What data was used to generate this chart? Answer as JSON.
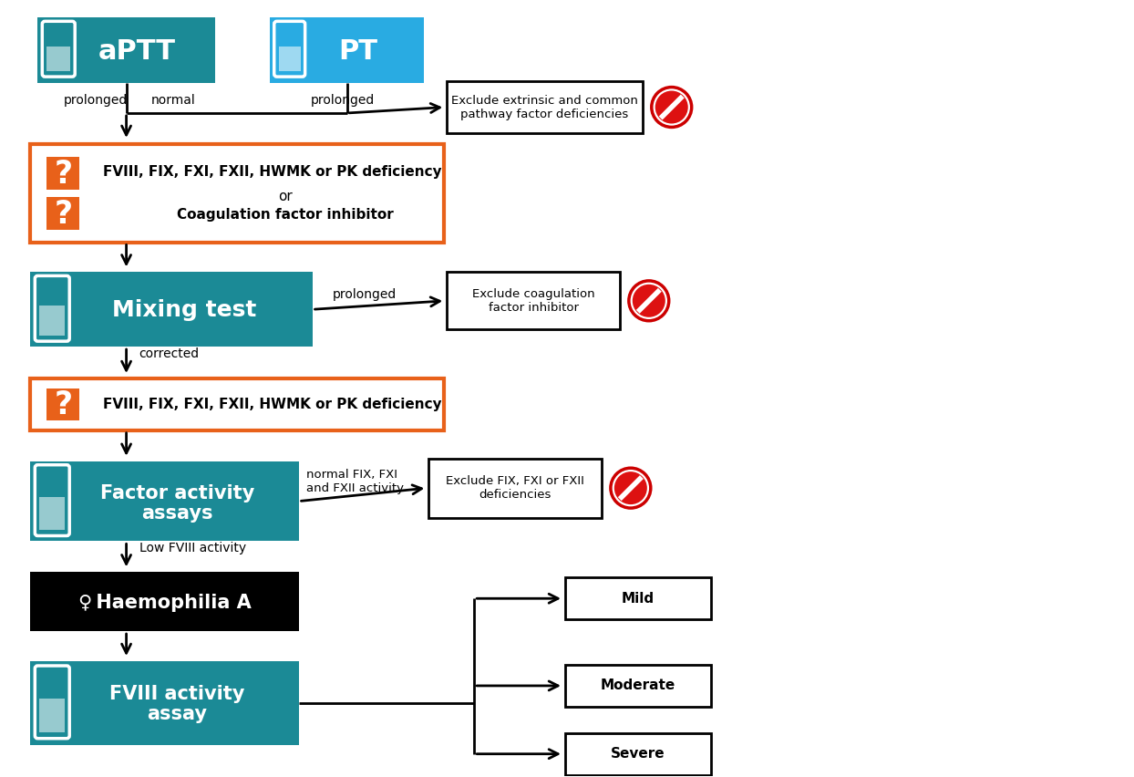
{
  "bg_color": "#ffffff",
  "teal_dark": "#1b8a96",
  "teal_light": "#29abe2",
  "orange_border": "#e8611a",
  "orange_box": "#e8611a",
  "black_box": "#000000",
  "white": "#ffffff",
  "black": "#000000",
  "aptt_label": "aPTT",
  "pt_label": "PT",
  "mixing_label": "Mixing test",
  "factor_assays_label1": "Factor activity",
  "factor_assays_label2": "assays",
  "haemo_label": "Haemophilia A",
  "fviii_assay_label1": "FVIII activity",
  "fviii_assay_label2": "assay",
  "question_box2_text": "FVIII, FIX, FXI, FXII, HWMK or PK deficiency",
  "exclude1_text": "Exclude extrinsic and common\npathway factor deficiencies",
  "exclude2_text": "Exclude coagulation\nfactor inhibitor",
  "exclude3_text": "Exclude FIX, FXI or FXII\ndeficiencies",
  "mild_text": "Mild",
  "moderate_text": "Moderate",
  "severe_text": "Severe",
  "prolonged_label1": "prolonged",
  "normal_label": "normal",
  "prolonged_label2": "prolonged",
  "corrected_label": "corrected",
  "prolonged_label3": "prolonged",
  "normal_fix_label": "normal FIX, FXI\nand FXII activity",
  "low_fviii_label": "Low FVIII activity"
}
